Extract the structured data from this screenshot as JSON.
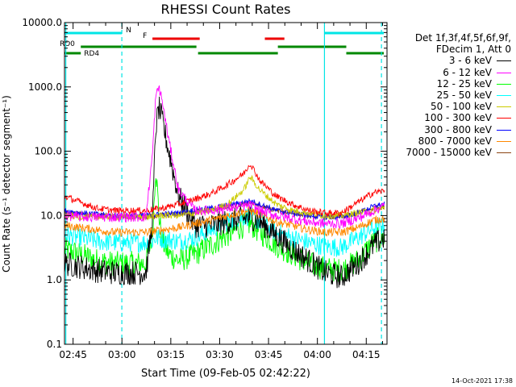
{
  "chart_data": {
    "type": "line",
    "title": "RHESSI Count Rates",
    "xlabel": "Start Time (09-Feb-05 02:42:22)",
    "ylabel": "Count Rate (s⁻¹ detector segment⁻¹)",
    "x_unit": "minutes after 02:42:22",
    "xlim": [
      0,
      99
    ],
    "ylim": [
      0.1,
      10000
    ],
    "yscale": "log",
    "x_ticks": [
      "02:45",
      "03:00",
      "03:15",
      "03:30",
      "03:45",
      "04:00",
      "04:15"
    ],
    "y_ticks": [
      "0.1",
      "1.0",
      "10.0",
      "100.0",
      "1000.0",
      "10000.0"
    ],
    "legend_header": [
      "Det 1f,3f,4f,5f,6f,9f,",
      "FDecim 1, Att 0"
    ],
    "legend_position": "right",
    "series": [
      {
        "name": "3 - 6 keV",
        "color": "#000000",
        "x": [
          0,
          5,
          10,
          15,
          20,
          25,
          27,
          28,
          29,
          30,
          32,
          35,
          40,
          45,
          50,
          55,
          57,
          60,
          65,
          70,
          75,
          80,
          85,
          90,
          95,
          98
        ],
        "y": [
          1.8,
          1.6,
          1.4,
          1.3,
          1.3,
          1.3,
          8,
          230,
          480,
          300,
          100,
          20,
          7,
          7,
          8,
          9,
          9.5,
          8,
          5,
          3,
          2,
          1.3,
          1.1,
          1.8,
          3.5,
          4.5
        ]
      },
      {
        "name": "6 - 12 keV",
        "color": "#ff00ff",
        "x": [
          0,
          5,
          10,
          15,
          20,
          25,
          27,
          28,
          29,
          30,
          32,
          35,
          40,
          45,
          50,
          55,
          57,
          60,
          65,
          70,
          75,
          80,
          85,
          90,
          95,
          98
        ],
        "y": [
          10,
          9.5,
          9.5,
          9.5,
          9.5,
          9.5,
          90,
          700,
          1000,
          600,
          150,
          25,
          12,
          12,
          13,
          14,
          14.5,
          12,
          10,
          9,
          8,
          7.5,
          7.5,
          9,
          12,
          14
        ]
      },
      {
        "name": "12 - 25 keV",
        "color": "#00ff00",
        "x": [
          0,
          5,
          10,
          15,
          20,
          25,
          27,
          28,
          29,
          30,
          32,
          35,
          40,
          45,
          50,
          55,
          57,
          60,
          65,
          70,
          75,
          80,
          85,
          90,
          95,
          98
        ],
        "y": [
          3,
          2.5,
          2,
          1.8,
          1.8,
          1.8,
          5,
          60,
          10,
          4,
          2.5,
          2,
          2.5,
          3.5,
          5,
          7,
          7.5,
          5.5,
          3.5,
          2.5,
          1.8,
          1.5,
          1.4,
          2,
          4,
          4.5
        ]
      },
      {
        "name": "25 - 50 keV",
        "color": "#00ffff",
        "x": [
          0,
          5,
          10,
          15,
          20,
          25,
          27,
          28,
          29,
          30,
          32,
          35,
          40,
          45,
          50,
          55,
          57,
          60,
          65,
          70,
          75,
          80,
          85,
          90,
          95,
          98
        ],
        "y": [
          5,
          4.5,
          4,
          3.8,
          3.8,
          3.8,
          4,
          4.5,
          4.5,
          4.3,
          4.2,
          4,
          4.5,
          6,
          8,
          9.5,
          10,
          8,
          5.5,
          4.5,
          3.8,
          3.3,
          3.2,
          4.5,
          6.5,
          7
        ]
      },
      {
        "name": "50 - 100 keV",
        "color": "#cccc00",
        "x": [
          0,
          5,
          10,
          15,
          20,
          25,
          30,
          35,
          40,
          45,
          50,
          55,
          57,
          60,
          65,
          70,
          75,
          80,
          85,
          90,
          95,
          98
        ],
        "y": [
          10,
          9.5,
          9.5,
          9.5,
          9.5,
          9.5,
          10,
          10,
          11,
          12,
          15,
          25,
          40,
          25,
          15,
          12,
          11,
          10,
          10,
          11,
          12,
          13
        ]
      },
      {
        "name": "100 - 300 keV",
        "color": "#ff0000",
        "x": [
          0,
          5,
          10,
          15,
          20,
          25,
          30,
          35,
          40,
          45,
          50,
          55,
          57,
          60,
          65,
          70,
          75,
          80,
          85,
          90,
          95,
          98
        ],
        "y": [
          20,
          16,
          13,
          12,
          12,
          12,
          13,
          15,
          18,
          22,
          30,
          45,
          65,
          35,
          20,
          15,
          12,
          11,
          11,
          16,
          23,
          24
        ]
      },
      {
        "name": "300 - 800 keV",
        "color": "#0000ff",
        "x": [
          0,
          5,
          10,
          15,
          20,
          25,
          30,
          35,
          40,
          45,
          50,
          55,
          57,
          60,
          65,
          70,
          75,
          80,
          85,
          90,
          95,
          98
        ],
        "y": [
          12,
          11,
          10.5,
          10,
          10,
          10,
          10.5,
          11,
          12,
          13,
          14.5,
          16,
          17,
          15,
          12,
          11,
          10,
          9.5,
          9.5,
          11,
          14,
          15
        ]
      },
      {
        "name": "800 - 7000 keV",
        "color": "#ff8800",
        "x": [
          0,
          5,
          10,
          15,
          20,
          25,
          30,
          35,
          40,
          45,
          50,
          55,
          57,
          60,
          65,
          70,
          75,
          80,
          85,
          90,
          95,
          98
        ],
        "y": [
          7,
          6.5,
          6,
          5.5,
          5.5,
          5.5,
          6,
          6.5,
          7.5,
          8.5,
          10,
          11.5,
          12,
          10.5,
          8,
          7,
          6,
          5.5,
          5.5,
          6.5,
          8.5,
          9
        ]
      },
      {
        "name": "7000 - 15000 keV",
        "color": "#8b4513",
        "x": [
          0,
          5,
          10,
          15,
          20,
          25,
          30,
          35,
          40,
          45,
          50,
          55,
          57,
          60,
          65,
          70,
          75,
          80,
          85,
          90,
          95,
          98
        ],
        "y": [
          11,
          10.5,
          10,
          9.5,
          9.5,
          9.5,
          10,
          10.5,
          11.5,
          12.5,
          13.5,
          15,
          16,
          14,
          12,
          11,
          10,
          9.5,
          9.5,
          11,
          13,
          14
        ]
      }
    ],
    "vertical_lines": [
      {
        "x": 0.4,
        "style": "solid",
        "color": "#00e5e5"
      },
      {
        "x": 17.6,
        "style": "dashed",
        "color": "#00e5e5"
      },
      {
        "x": 79.8,
        "style": "solid",
        "color": "#00e5e5"
      },
      {
        "x": 97.3,
        "style": "dashed",
        "color": "#00e5e5"
      }
    ],
    "annotation_bars": [
      {
        "label": "N",
        "color": "#00e5e5",
        "segments": [
          [
            0,
            17.6
          ],
          [
            79.8,
            98
          ]
        ]
      },
      {
        "label": "F",
        "color": "#ee0000",
        "segments": [
          [
            27,
            41.5
          ],
          [
            61.5,
            67.5
          ]
        ]
      },
      {
        "label": "RD0",
        "color": "#008800",
        "segments": [
          [
            5,
            40.5
          ],
          [
            65.5,
            86.5
          ]
        ]
      },
      {
        "label": "RD4",
        "color": "#008800",
        "segments": [
          [
            0,
            5
          ],
          [
            41,
            65.5
          ],
          [
            86.5,
            98
          ]
        ]
      }
    ]
  },
  "timestamp": "14-Oct-2021 17:38"
}
